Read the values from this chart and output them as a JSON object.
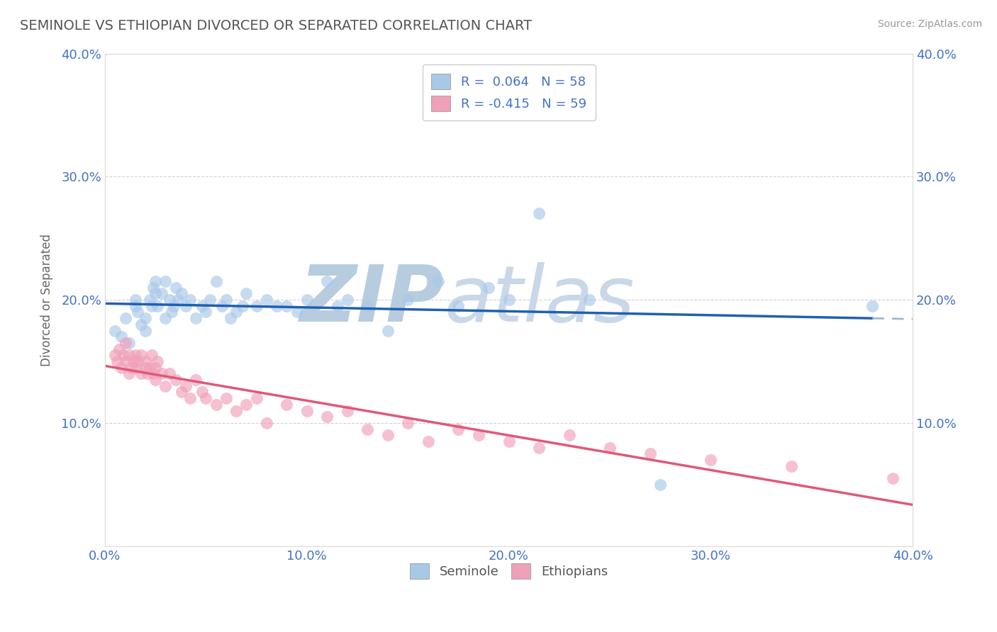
{
  "title": "SEMINOLE VS ETHIOPIAN DIVORCED OR SEPARATED CORRELATION CHART",
  "source": "Source: ZipAtlas.com",
  "ylabel": "Divorced or Separated",
  "watermark_zip": "ZIP",
  "watermark_atlas": "atlas",
  "xlim": [
    0.0,
    0.4
  ],
  "ylim": [
    0.0,
    0.4
  ],
  "xticks": [
    0.0,
    0.1,
    0.2,
    0.3,
    0.4
  ],
  "yticks": [
    0.0,
    0.1,
    0.2,
    0.3,
    0.4
  ],
  "seminole_color": "#a8c8e8",
  "ethiopian_color": "#f0a0b8",
  "seminole_line_color": "#2060b0",
  "seminole_line_dash_color": "#a0b8d0",
  "ethiopian_line_color": "#e05878",
  "seminole_x": [
    0.005,
    0.008,
    0.01,
    0.012,
    0.015,
    0.015,
    0.016,
    0.018,
    0.02,
    0.02,
    0.022,
    0.023,
    0.024,
    0.025,
    0.025,
    0.026,
    0.028,
    0.03,
    0.03,
    0.032,
    0.033,
    0.034,
    0.035,
    0.036,
    0.038,
    0.04,
    0.042,
    0.045,
    0.048,
    0.05,
    0.052,
    0.055,
    0.058,
    0.06,
    0.062,
    0.065,
    0.068,
    0.07,
    0.075,
    0.08,
    0.085,
    0.09,
    0.095,
    0.1,
    0.11,
    0.115,
    0.12,
    0.13,
    0.14,
    0.15,
    0.165,
    0.175,
    0.19,
    0.2,
    0.215,
    0.24,
    0.275,
    0.38
  ],
  "seminole_y": [
    0.175,
    0.17,
    0.185,
    0.165,
    0.2,
    0.195,
    0.19,
    0.18,
    0.175,
    0.185,
    0.2,
    0.195,
    0.21,
    0.205,
    0.215,
    0.195,
    0.205,
    0.185,
    0.215,
    0.2,
    0.19,
    0.195,
    0.21,
    0.2,
    0.205,
    0.195,
    0.2,
    0.185,
    0.195,
    0.19,
    0.2,
    0.215,
    0.195,
    0.2,
    0.185,
    0.19,
    0.195,
    0.205,
    0.195,
    0.2,
    0.195,
    0.195,
    0.19,
    0.2,
    0.215,
    0.195,
    0.2,
    0.195,
    0.175,
    0.2,
    0.215,
    0.195,
    0.21,
    0.2,
    0.27,
    0.2,
    0.05,
    0.195
  ],
  "ethiopian_x": [
    0.005,
    0.006,
    0.007,
    0.008,
    0.009,
    0.01,
    0.01,
    0.012,
    0.012,
    0.013,
    0.014,
    0.015,
    0.015,
    0.016,
    0.018,
    0.018,
    0.02,
    0.02,
    0.021,
    0.022,
    0.023,
    0.024,
    0.025,
    0.025,
    0.026,
    0.028,
    0.03,
    0.032,
    0.035,
    0.038,
    0.04,
    0.042,
    0.045,
    0.048,
    0.05,
    0.055,
    0.06,
    0.065,
    0.07,
    0.075,
    0.08,
    0.09,
    0.1,
    0.11,
    0.12,
    0.13,
    0.14,
    0.15,
    0.16,
    0.175,
    0.185,
    0.2,
    0.215,
    0.23,
    0.25,
    0.27,
    0.3,
    0.34,
    0.39
  ],
  "ethiopian_y": [
    0.155,
    0.15,
    0.16,
    0.145,
    0.155,
    0.15,
    0.165,
    0.14,
    0.155,
    0.145,
    0.15,
    0.155,
    0.145,
    0.15,
    0.14,
    0.155,
    0.145,
    0.15,
    0.14,
    0.145,
    0.155,
    0.14,
    0.145,
    0.135,
    0.15,
    0.14,
    0.13,
    0.14,
    0.135,
    0.125,
    0.13,
    0.12,
    0.135,
    0.125,
    0.12,
    0.115,
    0.12,
    0.11,
    0.115,
    0.12,
    0.1,
    0.115,
    0.11,
    0.105,
    0.11,
    0.095,
    0.09,
    0.1,
    0.085,
    0.095,
    0.09,
    0.085,
    0.08,
    0.09,
    0.08,
    0.075,
    0.07,
    0.065,
    0.055
  ],
  "background_color": "#ffffff",
  "grid_color": "#cccccc",
  "title_color": "#555555",
  "tick_color": "#4472c4",
  "watermark_color": "#ccd8ec"
}
